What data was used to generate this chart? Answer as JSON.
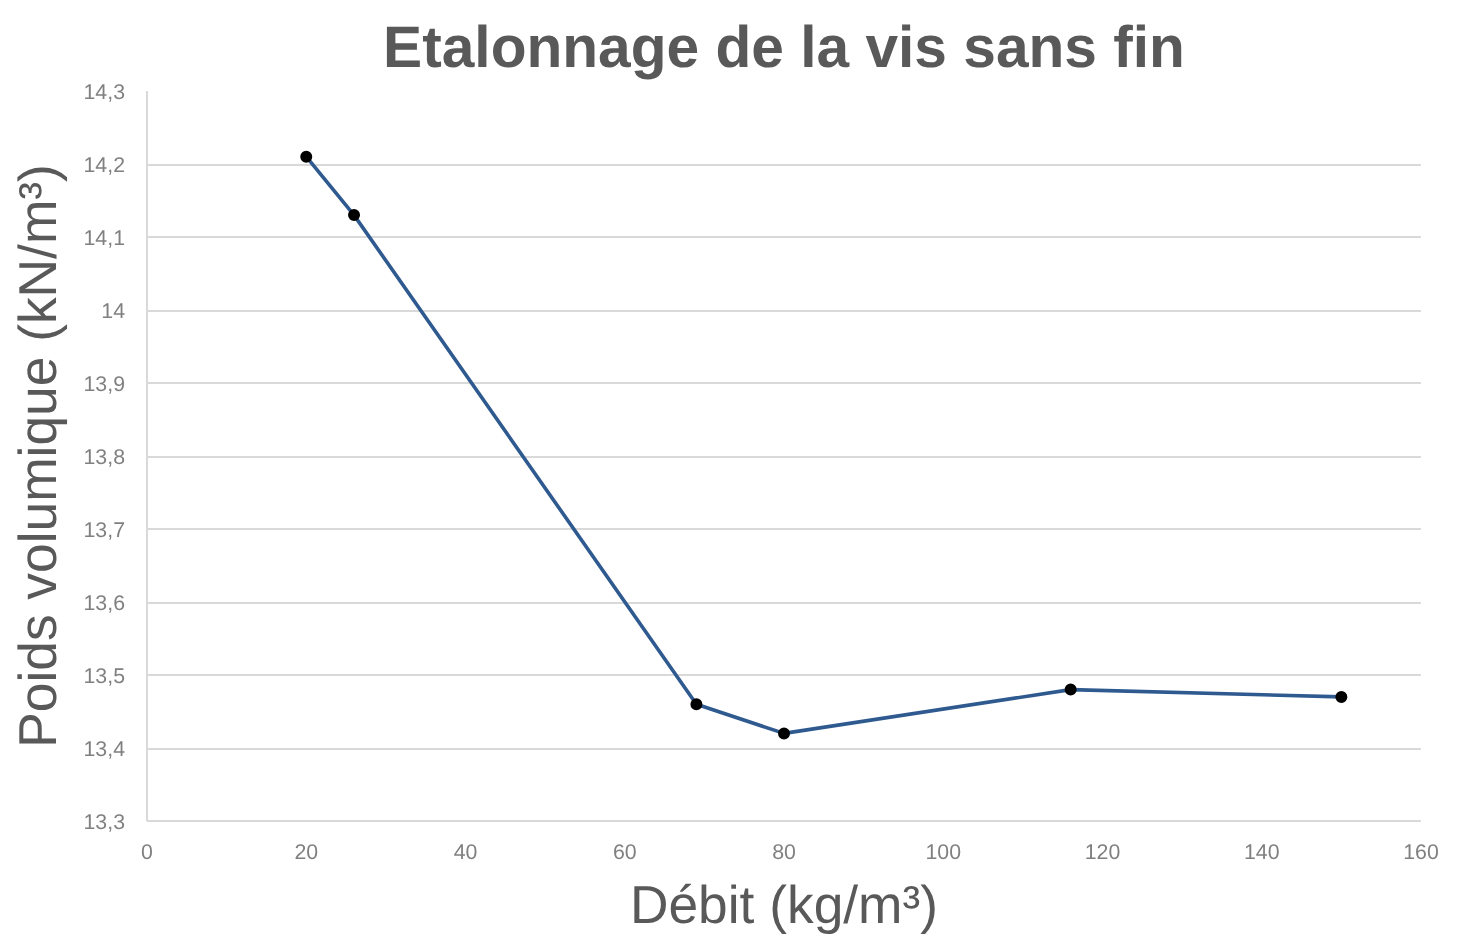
{
  "chart_data": {
    "type": "line",
    "title": "Etalonnage de la vis sans fin",
    "xlabel": "Débit (kg/m³)",
    "ylabel": "Poids volumique (kN/m³)",
    "series": [
      {
        "color": "#2f5a8f",
        "x": [
          20,
          26,
          69,
          80,
          116,
          150
        ],
        "values": [
          14.21,
          14.13,
          13.46,
          13.42,
          13.48,
          13.47
        ]
      }
    ],
    "xlim": [
      0,
      160
    ],
    "xticks": [
      0,
      20,
      40,
      60,
      80,
      100,
      120,
      140,
      160
    ],
    "ylim": [
      13.3,
      14.3
    ],
    "yticks": [
      {
        "value": 13.3,
        "label": "13,3"
      },
      {
        "value": 13.4,
        "label": "13,4"
      },
      {
        "value": 13.5,
        "label": "13,5"
      },
      {
        "value": 13.6,
        "label": "13,6"
      },
      {
        "value": 13.7,
        "label": "13,7"
      },
      {
        "value": 13.8,
        "label": "13,8"
      },
      {
        "value": 13.9,
        "label": "13,9"
      },
      14,
      {
        "value": 14.1,
        "label": "14,1"
      },
      {
        "value": 14.2,
        "label": "14,2"
      },
      {
        "value": 14.3,
        "label": "14,3"
      }
    ],
    "grid": "y",
    "marker": "circle",
    "line_style": "solid"
  }
}
